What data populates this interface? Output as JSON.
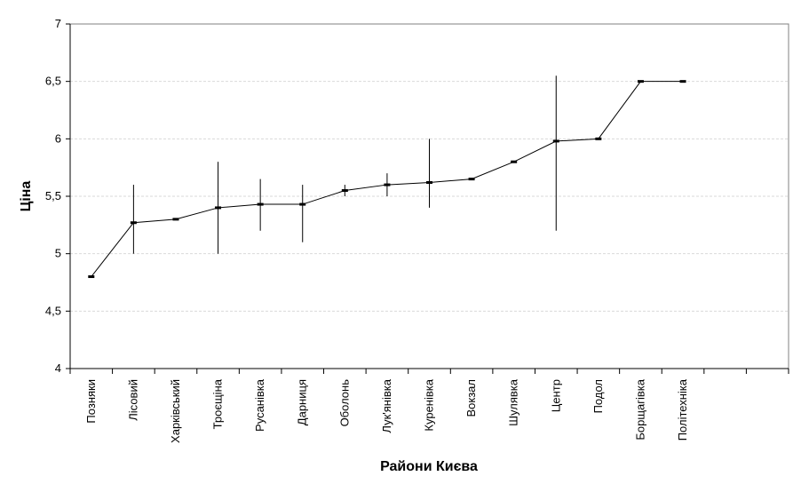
{
  "chart_data": {
    "type": "line",
    "xlabel": "Райони Києва",
    "ylabel": "Ціна",
    "ylim": [
      4,
      7
    ],
    "yticks": [
      "4",
      "4,5",
      "5",
      "5,5",
      "6",
      "6,5",
      "7"
    ],
    "ytick_values": [
      4,
      4.5,
      5,
      5.5,
      6,
      6.5,
      7
    ],
    "grid": "horizontal dashed",
    "categories": [
      "Позняки",
      "Лісовий",
      "Харківський",
      "Троєщіна",
      "Русанівка",
      "Дарниця",
      "Оболонь",
      "Лук'янівка",
      "Куренівка",
      "Вокзал",
      "Шулявка",
      "Центр",
      "Подол",
      "Борщагівка",
      "Політехніка"
    ],
    "total_category_slots": 17,
    "series": [
      {
        "values": [
          4.8,
          5.27,
          5.3,
          5.4,
          5.43,
          5.43,
          5.55,
          5.6,
          5.62,
          5.65,
          5.8,
          5.98,
          6.0,
          6.5,
          6.5
        ],
        "range_high": [
          4.8,
          5.6,
          5.3,
          5.8,
          5.65,
          5.6,
          5.6,
          5.7,
          6.0,
          5.65,
          5.8,
          6.55,
          6.0,
          6.5,
          6.5
        ],
        "range_low": [
          4.8,
          5.0,
          5.3,
          5.0,
          5.2,
          5.1,
          5.5,
          5.5,
          5.4,
          5.65,
          5.8,
          5.2,
          6.0,
          6.5,
          6.5
        ]
      }
    ],
    "colors": {
      "line": "#000000",
      "grid": "#d9d9d9",
      "frame": "#808080"
    }
  }
}
